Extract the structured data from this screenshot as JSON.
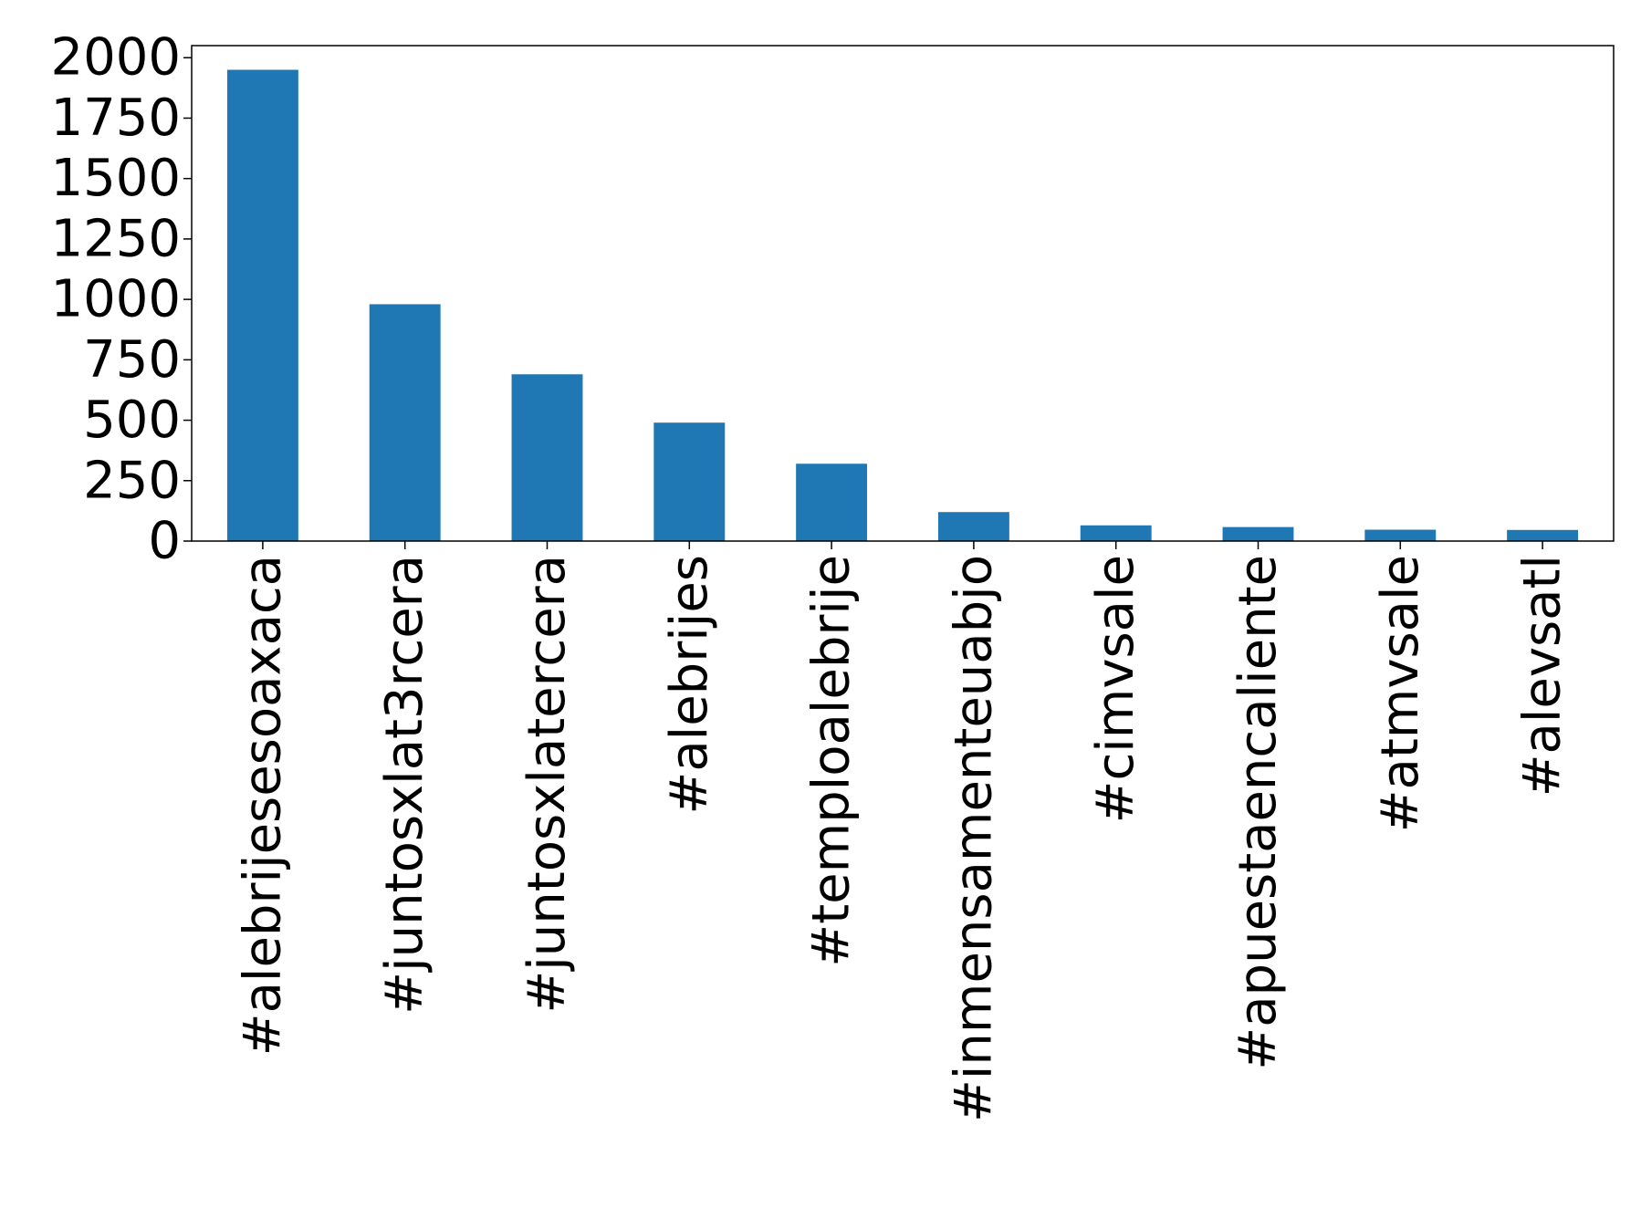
{
  "chart_data": {
    "type": "bar",
    "title": "",
    "xlabel": "",
    "ylabel": "",
    "categories": [
      "#alebrijesesoaxaca",
      "#juntosxlat3rcera",
      "#juntosxlatercera",
      "#alebrijes",
      "#temploalebrije",
      "#inmensamenteuabjo",
      "#cimvsale",
      "#apuestaencaliente",
      "#atmvsale",
      "#alevsatl"
    ],
    "values": [
      1950,
      980,
      690,
      490,
      320,
      120,
      65,
      58,
      47,
      46
    ],
    "ylim": [
      0,
      2050
    ],
    "yticks": [
      0,
      250,
      500,
      750,
      1000,
      1250,
      1500,
      1750,
      2000
    ],
    "ytick_labels": [
      "0",
      "250",
      "500",
      "750",
      "1000",
      "1250",
      "1500",
      "1750",
      "2000"
    ],
    "bar_color": "#1f77b4",
    "grid": false,
    "legend": "none"
  }
}
